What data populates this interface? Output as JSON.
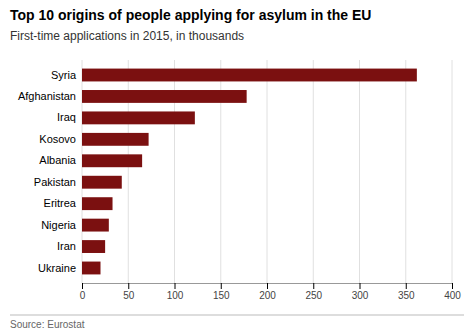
{
  "chart_data": {
    "type": "bar",
    "orientation": "horizontal",
    "title": "Top 10 origins of people applying for asylum in the EU",
    "subtitle": "First-time applications in 2015, in thousands",
    "source": "Source: Eurostat",
    "categories": [
      "Ukraine",
      "Iran",
      "Nigeria",
      "Eritrea",
      "Pakistan",
      "Albania",
      "Kosovo",
      "Iraq",
      "Afghanistan",
      "Syria"
    ],
    "values": [
      20,
      25,
      29,
      33,
      43,
      65,
      72,
      122,
      178,
      362
    ],
    "color": "#7B1010",
    "xlim": [
      0,
      400
    ],
    "xticks": [
      0,
      50,
      100,
      150,
      200,
      250,
      300,
      350,
      400
    ],
    "grid": true
  }
}
